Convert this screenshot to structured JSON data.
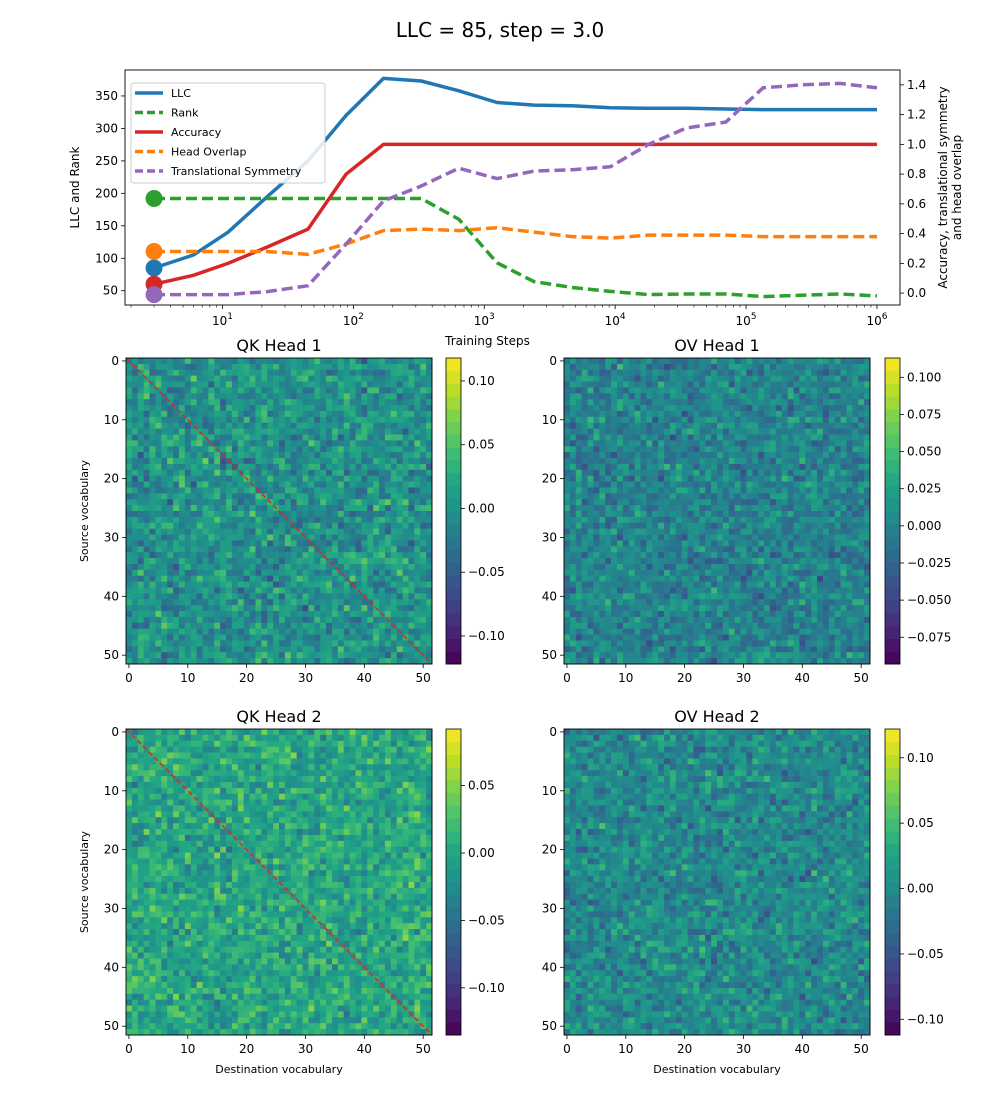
{
  "figure": {
    "title": "LLC = 85, step = 3.0"
  },
  "chart_data": [
    {
      "type": "line",
      "id": "training-curves",
      "xscale": "log",
      "xlabel": "Training Steps",
      "ylabel_left": "LLC and Rank",
      "ylabel_right": "Accuracy, translational symmetry\nand head overlap",
      "xlim": [
        1.8,
        1500000
      ],
      "ylim_left": [
        28,
        390
      ],
      "ylim_right": [
        -0.08,
        1.5
      ],
      "x_ticks": [
        {
          "value": 10,
          "label": "10",
          "sup": "1"
        },
        {
          "value": 100,
          "label": "10",
          "sup": "2"
        },
        {
          "value": 1000,
          "label": "10",
          "sup": "3"
        },
        {
          "value": 10000,
          "label": "10",
          "sup": "4"
        },
        {
          "value": 100000,
          "label": "10",
          "sup": "5"
        },
        {
          "value": 1000000,
          "label": "10",
          "sup": "6"
        }
      ],
      "y_ticks_left": [
        50,
        100,
        150,
        200,
        250,
        300,
        350
      ],
      "y_ticks_right": [
        0.0,
        0.2,
        0.4,
        0.6,
        0.8,
        1.0,
        1.2,
        1.4
      ],
      "y_ticks_right_labels": [
        "0.0",
        "0.2",
        "0.4",
        "0.6",
        "0.8",
        "1.0",
        "1.2",
        "1.4"
      ],
      "legend_position": "upper-left",
      "current_step": 3.0,
      "series": [
        {
          "name": "LLC",
          "axis": "left",
          "style": "solid",
          "color": "#1f77b4",
          "x": [
            3,
            6,
            11,
            22,
            45,
            88,
            170,
            330,
            640,
            1250,
            2400,
            4700,
            9200,
            18000,
            35000,
            70000,
            135000,
            260000,
            520000,
            1000000
          ],
          "y": [
            85,
            105,
            140,
            195,
            250,
            320,
            377,
            373,
            358,
            340,
            336,
            335,
            332,
            331,
            331,
            330,
            329,
            329,
            329,
            329
          ]
        },
        {
          "name": "Rank",
          "axis": "left",
          "style": "dashed",
          "color": "#2ca02c",
          "x": [
            3,
            6,
            11,
            22,
            45,
            88,
            170,
            330,
            640,
            1250,
            2400,
            4700,
            9200,
            18000,
            35000,
            70000,
            135000,
            260000,
            520000,
            1000000
          ],
          "y": [
            192,
            192,
            192,
            192,
            192,
            192,
            192,
            192,
            160,
            93,
            64,
            55,
            49,
            44,
            45,
            45,
            41,
            43,
            45,
            42
          ]
        },
        {
          "name": "Accuracy",
          "axis": "right",
          "style": "solid",
          "color": "#d62728",
          "x": [
            3,
            6,
            11,
            22,
            45,
            88,
            170,
            330,
            640,
            1250,
            2400,
            4700,
            9200,
            18000,
            35000,
            70000,
            135000,
            260000,
            520000,
            1000000
          ],
          "y": [
            0.06,
            0.12,
            0.2,
            0.31,
            0.43,
            0.8,
            1.0,
            1.0,
            1.0,
            1.0,
            1.0,
            1.0,
            1.0,
            1.0,
            1.0,
            1.0,
            1.0,
            1.0,
            1.0,
            1.0
          ]
        },
        {
          "name": "Head Overlap",
          "axis": "right",
          "style": "dashed",
          "color": "#ff7f0e",
          "x": [
            3,
            6,
            11,
            22,
            45,
            88,
            170,
            330,
            640,
            1250,
            2400,
            4700,
            9200,
            18000,
            35000,
            70000,
            135000,
            260000,
            520000,
            1000000
          ],
          "y": [
            0.28,
            0.28,
            0.28,
            0.28,
            0.26,
            0.33,
            0.42,
            0.43,
            0.42,
            0.44,
            0.41,
            0.38,
            0.37,
            0.39,
            0.39,
            0.39,
            0.38,
            0.38,
            0.38,
            0.38
          ]
        },
        {
          "name": "Translational Symmetry",
          "axis": "right",
          "style": "dashed",
          "color": "#9467bd",
          "x": [
            3,
            6,
            11,
            22,
            45,
            88,
            170,
            330,
            640,
            1250,
            2400,
            4700,
            9200,
            18000,
            35000,
            70000,
            135000,
            260000,
            520000,
            1000000
          ],
          "y": [
            -0.01,
            -0.01,
            -0.01,
            0.01,
            0.05,
            0.33,
            0.62,
            0.72,
            0.84,
            0.77,
            0.82,
            0.83,
            0.85,
            1.0,
            1.11,
            1.15,
            1.38,
            1.4,
            1.41,
            1.38
          ]
        }
      ],
      "current_markers": [
        {
          "series": "LLC",
          "x": 3,
          "y": 85
        },
        {
          "series": "Rank",
          "x": 3,
          "y": 192
        },
        {
          "series": "Accuracy",
          "x": 3,
          "y": 0.06
        },
        {
          "series": "Head Overlap",
          "x": 3,
          "y": 0.28
        },
        {
          "series": "Translational Symmetry",
          "x": 3,
          "y": -0.01
        }
      ]
    },
    {
      "type": "heatmap",
      "id": "qk-head-1",
      "title": "QK Head 1",
      "size": 52,
      "colormap": "viridis",
      "diagonal": true,
      "seed": 11,
      "spread": 0.045,
      "vmin": -0.122,
      "vmax": 0.118,
      "ylabel": "Source vocabulary",
      "xlabel": "",
      "axis_ticks": [
        0,
        10,
        20,
        30,
        40,
        50
      ],
      "colorbar_ticks": [
        -0.1,
        -0.05,
        0.0,
        0.05,
        0.1
      ],
      "colorbar_labels": [
        "−0.10",
        "−0.05",
        "0.00",
        "0.05",
        "0.10"
      ]
    },
    {
      "type": "heatmap",
      "id": "ov-head-1",
      "title": "OV Head 1",
      "size": 52,
      "colormap": "viridis",
      "diagonal": false,
      "seed": 23,
      "spread": 0.035,
      "vmin": -0.093,
      "vmax": 0.113,
      "ylabel": "",
      "xlabel": "",
      "axis_ticks": [
        0,
        10,
        20,
        30,
        40,
        50
      ],
      "colorbar_ticks": [
        -0.075,
        -0.05,
        -0.025,
        0.0,
        0.025,
        0.05,
        0.075,
        0.1
      ],
      "colorbar_labels": [
        "−0.075",
        "−0.050",
        "−0.025",
        "0.000",
        "0.025",
        "0.050",
        "0.075",
        "0.100"
      ]
    },
    {
      "type": "heatmap",
      "id": "qk-head-2",
      "title": "QK Head 2",
      "size": 52,
      "colormap": "viridis",
      "diagonal": true,
      "seed": 37,
      "spread": 0.04,
      "vmin": -0.135,
      "vmax": 0.092,
      "ylabel": "Source vocabulary",
      "xlabel": "Destination vocabulary",
      "axis_ticks": [
        0,
        10,
        20,
        30,
        40,
        50
      ],
      "colorbar_ticks": [
        -0.1,
        -0.05,
        0.0,
        0.05
      ],
      "colorbar_labels": [
        "−0.10",
        "−0.05",
        "0.00",
        "0.05"
      ]
    },
    {
      "type": "heatmap",
      "id": "ov-head-2",
      "title": "OV Head 2",
      "size": 52,
      "colormap": "viridis",
      "diagonal": false,
      "seed": 53,
      "spread": 0.04,
      "vmin": -0.112,
      "vmax": 0.122,
      "ylabel": "",
      "xlabel": "Destination vocabulary",
      "axis_ticks": [
        0,
        10,
        20,
        30,
        40,
        50
      ],
      "colorbar_ticks": [
        -0.1,
        -0.05,
        0.0,
        0.05,
        0.1
      ],
      "colorbar_labels": [
        "−0.10",
        "−0.05",
        "0.00",
        "0.05",
        "0.10"
      ]
    }
  ]
}
